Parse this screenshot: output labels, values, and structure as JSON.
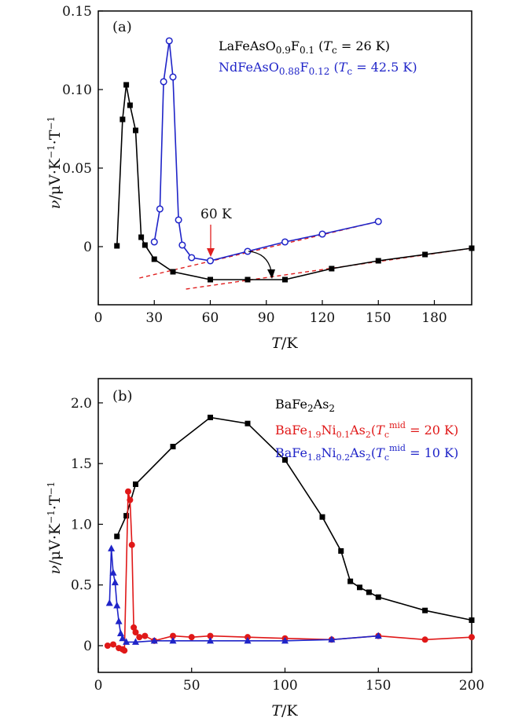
{
  "chart_data": [
    {
      "type": "line",
      "panel_label": "(a)",
      "xlabel": "T/K",
      "ylabel": "ν/μV·K⁻¹·T⁻¹",
      "xlim": [
        0,
        200
      ],
      "ylim": [
        -0.037,
        0.15
      ],
      "xticks": [
        0,
        30,
        60,
        90,
        120,
        150,
        180
      ],
      "yticks": [
        0,
        0.05,
        0.1,
        0.15
      ],
      "ytick_labels": [
        "0",
        "0.05",
        "0.10",
        "0.15"
      ],
      "grid": false,
      "legend_position": "top-right",
      "series": [
        {
          "name": "LaFeAsO0.9F0.1 (Tc = 26 K)",
          "color": "#000000",
          "marker": "square-filled",
          "x": [
            10,
            13,
            15,
            17,
            20,
            23,
            25,
            30,
            40,
            60,
            80,
            100,
            125,
            150,
            175,
            200
          ],
          "y": [
            0.0005,
            0.081,
            0.103,
            0.09,
            0.074,
            0.006,
            0.001,
            -0.008,
            -0.016,
            -0.021,
            -0.021,
            -0.021,
            -0.014,
            -0.009,
            -0.005,
            -0.001
          ]
        },
        {
          "name": "NdFeAsO0.88F0.12 (Tc = 42.5 K)",
          "color": "#1f24c8",
          "marker": "circle-open",
          "x": [
            30,
            33,
            35,
            38,
            40,
            43,
            45,
            50,
            60,
            80,
            100,
            120,
            150
          ],
          "y": [
            0.003,
            0.024,
            0.105,
            0.131,
            0.108,
            0.017,
            0.001,
            -0.007,
            -0.009,
            -0.003,
            0.003,
            0.008,
            0.016
          ]
        }
      ],
      "fit_lines": [
        {
          "color": "#e02020",
          "x": [
            22,
            150
          ],
          "y": [
            -0.02,
            0.016
          ]
        },
        {
          "color": "#e02020",
          "x": [
            47,
            200
          ],
          "y": [
            -0.027,
            -0.001
          ]
        }
      ],
      "annotations": [
        {
          "text": "60 K",
          "color": "#e02020"
        }
      ]
    },
    {
      "type": "line",
      "panel_label": "(b)",
      "xlabel": "T/K",
      "ylabel": "ν/μV·K⁻¹·T⁻¹",
      "xlim": [
        0,
        200
      ],
      "ylim": [
        -0.22,
        2.2
      ],
      "xticks": [
        0,
        50,
        100,
        150,
        200
      ],
      "yticks": [
        0,
        0.5,
        1.0,
        1.5,
        2.0
      ],
      "ytick_labels": [
        "0",
        "0.5",
        "1.0",
        "1.5",
        "2.0"
      ],
      "grid": false,
      "legend_position": "top-right",
      "series": [
        {
          "name": "BaFe2As2",
          "color": "#000000",
          "marker": "square-filled",
          "x": [
            10,
            15,
            20,
            40,
            60,
            80,
            100,
            120,
            130,
            135,
            140,
            145,
            150,
            175,
            200
          ],
          "y": [
            0.9,
            1.07,
            1.33,
            1.64,
            1.88,
            1.83,
            1.53,
            1.06,
            0.78,
            0.53,
            0.48,
            0.44,
            0.4,
            0.29,
            0.21
          ]
        },
        {
          "name": "BaFe1.9Ni0.1As2 (Tc^mid = 20 K)",
          "color": "#e01818",
          "marker": "circle-filled",
          "x": [
            5,
            8,
            11,
            13,
            14,
            16,
            17,
            18,
            19,
            20,
            22,
            25,
            30,
            40,
            50,
            60,
            80,
            100,
            125,
            150,
            175,
            200
          ],
          "y": [
            0.0,
            0.01,
            -0.02,
            -0.03,
            -0.04,
            1.27,
            1.2,
            0.83,
            0.15,
            0.11,
            0.07,
            0.08,
            0.04,
            0.08,
            0.07,
            0.08,
            0.07,
            0.06,
            0.05,
            0.08,
            0.05,
            0.07
          ]
        },
        {
          "name": "BaFe1.8Ni0.2As2 (Tc^mid = 10 K)",
          "color": "#1f24c8",
          "marker": "triangle-filled",
          "x": [
            6,
            7,
            8,
            9,
            10,
            11,
            12,
            13,
            15,
            20,
            30,
            40,
            60,
            80,
            100,
            125,
            150
          ],
          "y": [
            0.35,
            0.8,
            0.6,
            0.52,
            0.33,
            0.2,
            0.1,
            0.06,
            0.03,
            0.03,
            0.04,
            0.04,
            0.04,
            0.04,
            0.04,
            0.05,
            0.08
          ]
        }
      ]
    }
  ]
}
